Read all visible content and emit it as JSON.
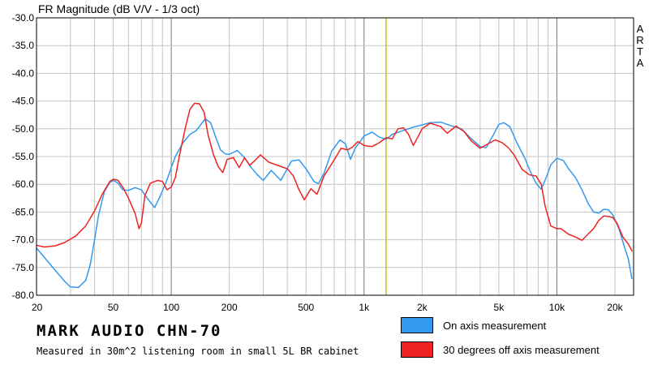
{
  "chart_data": {
    "type": "line",
    "title": "FR Magnitude (dB V/V - 1/3 oct)",
    "watermark": [
      "A",
      "R",
      "T",
      "A"
    ],
    "x_scale": "log",
    "xlim": [
      20,
      25000
    ],
    "ylim": [
      -80,
      -30
    ],
    "grid": true,
    "x_ticks": [
      {
        "value": 20,
        "label": "20"
      },
      {
        "value": 50,
        "label": "50"
      },
      {
        "value": 100,
        "label": "100"
      },
      {
        "value": 200,
        "label": "200"
      },
      {
        "value": 500,
        "label": "500"
      },
      {
        "value": 1000,
        "label": "1k"
      },
      {
        "value": 2000,
        "label": "2k"
      },
      {
        "value": 5000,
        "label": "5k"
      },
      {
        "value": 10000,
        "label": "10k"
      },
      {
        "value": 20000,
        "label": "20k"
      }
    ],
    "y_ticks": [
      {
        "value": -30,
        "label": "-30.0"
      },
      {
        "value": -35,
        "label": "-35.0"
      },
      {
        "value": -40,
        "label": "-40.0"
      },
      {
        "value": -45,
        "label": "-45.0"
      },
      {
        "value": -50,
        "label": "-50.0"
      },
      {
        "value": -55,
        "label": "-55.0"
      },
      {
        "value": -60,
        "label": "-60.0"
      },
      {
        "value": -65,
        "label": "-65.0"
      },
      {
        "value": -70,
        "label": "-70.0"
      },
      {
        "value": -75,
        "label": "-75.0"
      },
      {
        "value": -80,
        "label": "-80.0"
      }
    ],
    "marker_line": {
      "x": 1300,
      "color": "#c8c800"
    },
    "series": [
      {
        "name": "On axis measurement",
        "color": "#3399ee",
        "points": [
          [
            20,
            -71.5
          ],
          [
            22,
            -73.2
          ],
          [
            25,
            -75.5
          ],
          [
            28,
            -77.5
          ],
          [
            30,
            -78.5
          ],
          [
            33,
            -78.6
          ],
          [
            36,
            -77.3
          ],
          [
            38,
            -74.5
          ],
          [
            40,
            -70.0
          ],
          [
            42,
            -65.5
          ],
          [
            45,
            -61.3
          ],
          [
            48,
            -59.7
          ],
          [
            50,
            -59.3
          ],
          [
            53,
            -59.8
          ],
          [
            56,
            -61.0
          ],
          [
            60,
            -61.1
          ],
          [
            65,
            -60.6
          ],
          [
            70,
            -61.0
          ],
          [
            75,
            -62.5
          ],
          [
            82,
            -64.2
          ],
          [
            88,
            -62.0
          ],
          [
            95,
            -59.2
          ],
          [
            100,
            -57.0
          ],
          [
            105,
            -55.0
          ],
          [
            115,
            -52.5
          ],
          [
            125,
            -51.0
          ],
          [
            135,
            -50.3
          ],
          [
            150,
            -48.2
          ],
          [
            160,
            -48.9
          ],
          [
            170,
            -51.5
          ],
          [
            180,
            -53.8
          ],
          [
            190,
            -54.5
          ],
          [
            200,
            -54.6
          ],
          [
            220,
            -53.9
          ],
          [
            240,
            -55.2
          ],
          [
            260,
            -57.0
          ],
          [
            280,
            -58.3
          ],
          [
            300,
            -59.3
          ],
          [
            330,
            -57.5
          ],
          [
            370,
            -59.3
          ],
          [
            420,
            -55.8
          ],
          [
            460,
            -55.6
          ],
          [
            500,
            -57.2
          ],
          [
            550,
            -59.5
          ],
          [
            580,
            -59.9
          ],
          [
            620,
            -58.0
          ],
          [
            680,
            -54.0
          ],
          [
            750,
            -52.0
          ],
          [
            800,
            -52.7
          ],
          [
            850,
            -55.5
          ],
          [
            900,
            -53.5
          ],
          [
            1000,
            -51.3
          ],
          [
            1100,
            -50.6
          ],
          [
            1200,
            -51.5
          ],
          [
            1300,
            -51.9
          ],
          [
            1400,
            -51.0
          ],
          [
            1600,
            -50.3
          ],
          [
            1800,
            -49.7
          ],
          [
            2000,
            -49.3
          ],
          [
            2200,
            -48.9
          ],
          [
            2500,
            -48.8
          ],
          [
            2800,
            -49.4
          ],
          [
            3200,
            -50.0
          ],
          [
            3600,
            -51.8
          ],
          [
            4000,
            -53.2
          ],
          [
            4300,
            -53.4
          ],
          [
            4700,
            -51.0
          ],
          [
            5000,
            -49.2
          ],
          [
            5300,
            -48.9
          ],
          [
            5700,
            -49.6
          ],
          [
            6200,
            -52.5
          ],
          [
            6800,
            -55.2
          ],
          [
            7300,
            -57.8
          ],
          [
            7800,
            -59.8
          ],
          [
            8300,
            -60.9
          ],
          [
            8800,
            -58.8
          ],
          [
            9300,
            -56.5
          ],
          [
            10000,
            -55.3
          ],
          [
            10800,
            -55.7
          ],
          [
            11500,
            -57.2
          ],
          [
            12500,
            -58.8
          ],
          [
            13500,
            -61.0
          ],
          [
            14500,
            -63.4
          ],
          [
            15500,
            -65.0
          ],
          [
            16500,
            -65.2
          ],
          [
            17500,
            -64.5
          ],
          [
            18500,
            -64.6
          ],
          [
            19500,
            -65.5
          ],
          [
            21000,
            -68.0
          ],
          [
            22500,
            -71.5
          ],
          [
            23500,
            -73.5
          ],
          [
            24500,
            -77.0
          ]
        ]
      },
      {
        "name": "30 degrees off axis measurement",
        "color": "#ee2222",
        "points": [
          [
            20,
            -71.0
          ],
          [
            22,
            -71.3
          ],
          [
            25,
            -71.1
          ],
          [
            28,
            -70.5
          ],
          [
            32,
            -69.3
          ],
          [
            36,
            -67.5
          ],
          [
            40,
            -64.8
          ],
          [
            44,
            -61.7
          ],
          [
            48,
            -59.5
          ],
          [
            50,
            -59.1
          ],
          [
            53,
            -59.3
          ],
          [
            56,
            -60.5
          ],
          [
            60,
            -62.5
          ],
          [
            65,
            -65.3
          ],
          [
            68,
            -68.0
          ],
          [
            70,
            -67.0
          ],
          [
            73,
            -62.0
          ],
          [
            78,
            -59.8
          ],
          [
            85,
            -59.3
          ],
          [
            90,
            -59.5
          ],
          [
            95,
            -61.0
          ],
          [
            100,
            -60.5
          ],
          [
            105,
            -58.8
          ],
          [
            110,
            -55.0
          ],
          [
            118,
            -50.0
          ],
          [
            125,
            -46.5
          ],
          [
            132,
            -45.4
          ],
          [
            140,
            -45.5
          ],
          [
            148,
            -47.0
          ],
          [
            155,
            -51.0
          ],
          [
            165,
            -54.5
          ],
          [
            175,
            -56.8
          ],
          [
            185,
            -57.9
          ],
          [
            195,
            -55.5
          ],
          [
            210,
            -55.2
          ],
          [
            225,
            -57.0
          ],
          [
            240,
            -55.2
          ],
          [
            255,
            -56.6
          ],
          [
            270,
            -55.8
          ],
          [
            290,
            -54.7
          ],
          [
            320,
            -56.0
          ],
          [
            350,
            -56.5
          ],
          [
            400,
            -57.2
          ],
          [
            430,
            -58.5
          ],
          [
            460,
            -61.0
          ],
          [
            490,
            -62.8
          ],
          [
            530,
            -60.8
          ],
          [
            570,
            -61.8
          ],
          [
            620,
            -58.5
          ],
          [
            700,
            -55.6
          ],
          [
            760,
            -53.5
          ],
          [
            820,
            -53.8
          ],
          [
            870,
            -53.3
          ],
          [
            930,
            -52.3
          ],
          [
            1000,
            -53.0
          ],
          [
            1100,
            -53.2
          ],
          [
            1200,
            -52.5
          ],
          [
            1300,
            -51.6
          ],
          [
            1400,
            -51.8
          ],
          [
            1500,
            -50.0
          ],
          [
            1600,
            -49.8
          ],
          [
            1700,
            -51.0
          ],
          [
            1800,
            -53.0
          ],
          [
            1900,
            -51.5
          ],
          [
            2000,
            -50.0
          ],
          [
            2200,
            -49.0
          ],
          [
            2500,
            -49.6
          ],
          [
            2700,
            -50.8
          ],
          [
            3000,
            -49.5
          ],
          [
            3300,
            -50.5
          ],
          [
            3600,
            -52.2
          ],
          [
            4000,
            -53.5
          ],
          [
            4400,
            -52.7
          ],
          [
            4800,
            -52.0
          ],
          [
            5200,
            -52.5
          ],
          [
            5600,
            -53.4
          ],
          [
            6000,
            -54.7
          ],
          [
            6600,
            -57.3
          ],
          [
            7200,
            -58.3
          ],
          [
            7800,
            -58.5
          ],
          [
            8300,
            -60.0
          ],
          [
            8700,
            -64.0
          ],
          [
            9300,
            -67.5
          ],
          [
            10000,
            -68.0
          ],
          [
            10500,
            -68.0
          ],
          [
            11500,
            -69.0
          ],
          [
            12500,
            -69.5
          ],
          [
            13500,
            -70.1
          ],
          [
            14500,
            -69.0
          ],
          [
            15500,
            -68.0
          ],
          [
            16500,
            -66.5
          ],
          [
            17500,
            -65.7
          ],
          [
            18500,
            -65.8
          ],
          [
            19500,
            -66.0
          ],
          [
            20500,
            -67.0
          ],
          [
            22000,
            -69.5
          ],
          [
            23500,
            -70.8
          ],
          [
            24500,
            -72.0
          ]
        ]
      }
    ]
  },
  "footer": {
    "title": "MARK AUDIO CHN-70",
    "subtitle": "Measured in 30m^2 listening room in small 5L BR cabinet"
  },
  "legend": [
    {
      "label": "On axis measurement",
      "color": "#3399ee"
    },
    {
      "label": "30 degrees off axis measurement",
      "color": "#ee2222"
    }
  ]
}
